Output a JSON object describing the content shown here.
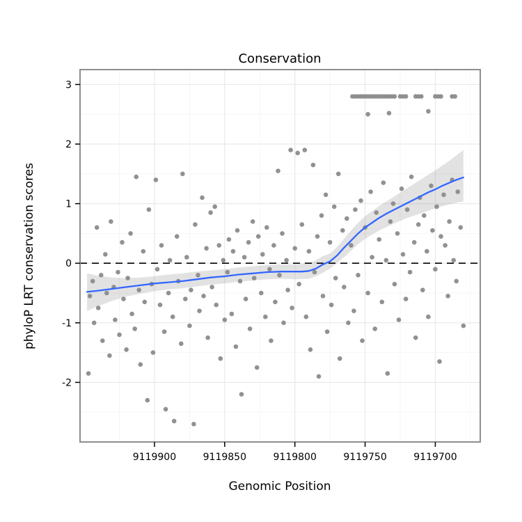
{
  "title": "Conservation",
  "chart_data": {
    "type": "scatter",
    "title": "Conservation",
    "xlabel": "Genomic Position",
    "ylabel": "phyloP LRT conservation scores",
    "x_reversed": true,
    "xlim": [
      9119953,
      9119668
    ],
    "ylim": [
      -3.0,
      3.25
    ],
    "xticks": [
      9119900,
      9119850,
      9119800,
      9119750,
      9119700
    ],
    "yticks": [
      -2,
      -1,
      0,
      1,
      2,
      3
    ],
    "hline": 0,
    "grid": true,
    "legend": "none",
    "colors": {
      "point": "#8b8b8b",
      "smooth": "#3366ff",
      "band": "#a0a0a0",
      "grid_major": "#e9e9e9",
      "grid_minor": "#f4f4f4",
      "panel_border": "#8e8e8e",
      "zero_line": "#000000",
      "text": "#000000"
    },
    "points": [
      [
        9119947,
        -1.85
      ],
      [
        9119946,
        -0.55
      ],
      [
        9119944,
        -0.3
      ],
      [
        9119943,
        -1.0
      ],
      [
        9119941,
        0.6
      ],
      [
        9119940,
        -0.75
      ],
      [
        9119938,
        -0.2
      ],
      [
        9119937,
        -1.3
      ],
      [
        9119935,
        0.15
      ],
      [
        9119934,
        -0.5
      ],
      [
        9119932,
        -1.55
      ],
      [
        9119931,
        0.7
      ],
      [
        9119929,
        -0.4
      ],
      [
        9119928,
        -0.95
      ],
      [
        9119926,
        -0.15
      ],
      [
        9119925,
        -1.2
      ],
      [
        9119923,
        0.35
      ],
      [
        9119922,
        -0.6
      ],
      [
        9119920,
        -1.45
      ],
      [
        9119919,
        -0.25
      ],
      [
        9119917,
        0.5
      ],
      [
        9119916,
        -0.85
      ],
      [
        9119914,
        -1.1
      ],
      [
        9119913,
        1.45
      ],
      [
        9119911,
        -0.45
      ],
      [
        9119910,
        -1.7
      ],
      [
        9119908,
        0.2
      ],
      [
        9119907,
        -0.65
      ],
      [
        9119905,
        -2.3
      ],
      [
        9119904,
        0.9
      ],
      [
        9119902,
        -0.35
      ],
      [
        9119901,
        -1.5
      ],
      [
        9119899,
        1.4
      ],
      [
        9119898,
        -0.1
      ],
      [
        9119896,
        -0.7
      ],
      [
        9119895,
        0.3
      ],
      [
        9119893,
        -1.15
      ],
      [
        9119892,
        -2.45
      ],
      [
        9119890,
        -0.5
      ],
      [
        9119889,
        0.05
      ],
      [
        9119887,
        -0.9
      ],
      [
        9119886,
        -2.65
      ],
      [
        9119884,
        0.45
      ],
      [
        9119883,
        -0.3
      ],
      [
        9119881,
        -1.35
      ],
      [
        9119880,
        1.5
      ],
      [
        9119878,
        -0.6
      ],
      [
        9119877,
        0.1
      ],
      [
        9119875,
        -1.05
      ],
      [
        9119874,
        -0.45
      ],
      [
        9119872,
        -2.7
      ],
      [
        9119871,
        0.65
      ],
      [
        9119869,
        -0.2
      ],
      [
        9119868,
        -0.8
      ],
      [
        9119866,
        1.1
      ],
      [
        9119865,
        -0.55
      ],
      [
        9119863,
        0.25
      ],
      [
        9119862,
        -1.25
      ],
      [
        9119860,
        0.85
      ],
      [
        9119859,
        -0.4
      ],
      [
        9119857,
        0.95
      ],
      [
        9119856,
        -0.7
      ],
      [
        9119854,
        0.3
      ],
      [
        9119853,
        -1.6
      ],
      [
        9119851,
        0.05
      ],
      [
        9119850,
        -0.95
      ],
      [
        9119848,
        -0.15
      ],
      [
        9119847,
        0.4
      ],
      [
        9119845,
        -0.85
      ],
      [
        9119844,
        0.2
      ],
      [
        9119842,
        -1.4
      ],
      [
        9119841,
        0.55
      ],
      [
        9119839,
        -0.3
      ],
      [
        9119838,
        -2.2
      ],
      [
        9119836,
        0.1
      ],
      [
        9119835,
        -0.6
      ],
      [
        9119833,
        0.35
      ],
      [
        9119832,
        -1.1
      ],
      [
        9119830,
        0.7
      ],
      [
        9119829,
        -0.25
      ],
      [
        9119827,
        -1.75
      ],
      [
        9119826,
        0.45
      ],
      [
        9119824,
        -0.5
      ],
      [
        9119823,
        0.15
      ],
      [
        9119821,
        -0.9
      ],
      [
        9119820,
        0.6
      ],
      [
        9119818,
        -0.1
      ],
      [
        9119817,
        -1.3
      ],
      [
        9119815,
        0.3
      ],
      [
        9119814,
        -0.65
      ],
      [
        9119812,
        1.55
      ],
      [
        9119811,
        -0.2
      ],
      [
        9119809,
        0.5
      ],
      [
        9119808,
        -1.0
      ],
      [
        9119806,
        0.05
      ],
      [
        9119805,
        -0.45
      ],
      [
        9119803,
        1.9
      ],
      [
        9119802,
        -0.75
      ],
      [
        9119800,
        0.25
      ],
      [
        9119798,
        1.85
      ],
      [
        9119797,
        -0.35
      ],
      [
        9119795,
        0.65
      ],
      [
        9119793,
        1.9
      ],
      [
        9119792,
        -0.9
      ],
      [
        9119790,
        0.2
      ],
      [
        9119789,
        -1.45
      ],
      [
        9119787,
        1.65
      ],
      [
        9119786,
        -0.15
      ],
      [
        9119784,
        0.45
      ],
      [
        9119783,
        -1.9
      ],
      [
        9119781,
        0.8
      ],
      [
        9119780,
        -0.55
      ],
      [
        9119778,
        1.15
      ],
      [
        9119777,
        -1.15
      ],
      [
        9119775,
        0.35
      ],
      [
        9119774,
        -0.7
      ],
      [
        9119772,
        0.95
      ],
      [
        9119771,
        -0.25
      ],
      [
        9119769,
        1.5
      ],
      [
        9119768,
        -1.6
      ],
      [
        9119766,
        0.55
      ],
      [
        9119765,
        -0.4
      ],
      [
        9119763,
        0.75
      ],
      [
        9119762,
        -1.0
      ],
      [
        9119760,
        0.3
      ],
      [
        9119758,
        -0.8
      ],
      [
        9119757,
        0.9
      ],
      [
        9119755,
        -0.2
      ],
      [
        9119753,
        1.05
      ],
      [
        9119752,
        -1.3
      ],
      [
        9119759,
        2.8
      ],
      [
        9119757,
        2.8
      ],
      [
        9119755,
        2.8
      ],
      [
        9119753,
        2.8
      ],
      [
        9119751,
        2.8
      ],
      [
        9119749,
        2.8
      ],
      [
        9119747,
        2.8
      ],
      [
        9119745,
        2.8
      ],
      [
        9119743,
        2.8
      ],
      [
        9119741,
        2.8
      ],
      [
        9119739,
        2.8
      ],
      [
        9119737,
        2.8
      ],
      [
        9119735,
        2.8
      ],
      [
        9119733,
        2.8
      ],
      [
        9119731,
        2.8
      ],
      [
        9119729,
        2.8
      ],
      [
        9119725,
        2.8
      ],
      [
        9119723,
        2.8
      ],
      [
        9119721,
        2.8
      ],
      [
        9119714,
        2.8
      ],
      [
        9119712,
        2.8
      ],
      [
        9119710,
        2.8
      ],
      [
        9119700,
        2.8
      ],
      [
        9119698,
        2.8
      ],
      [
        9119696,
        2.8
      ],
      [
        9119688,
        2.8
      ],
      [
        9119686,
        2.8
      ],
      [
        9119748,
        2.5
      ],
      [
        9119733,
        2.52
      ],
      [
        9119705,
        2.55
      ],
      [
        9119750,
        0.6
      ],
      [
        9119748,
        -0.5
      ],
      [
        9119746,
        1.2
      ],
      [
        9119745,
        0.1
      ],
      [
        9119743,
        -1.1
      ],
      [
        9119742,
        0.85
      ],
      [
        9119740,
        0.4
      ],
      [
        9119738,
        -0.65
      ],
      [
        9119737,
        1.35
      ],
      [
        9119735,
        0.05
      ],
      [
        9119734,
        -1.85
      ],
      [
        9119732,
        0.7
      ],
      [
        9119730,
        1.0
      ],
      [
        9119729,
        -0.35
      ],
      [
        9119727,
        0.5
      ],
      [
        9119726,
        -0.95
      ],
      [
        9119724,
        1.25
      ],
      [
        9119723,
        0.15
      ],
      [
        9119721,
        -0.6
      ],
      [
        9119720,
        0.9
      ],
      [
        9119718,
        -0.15
      ],
      [
        9119717,
        1.45
      ],
      [
        9119715,
        0.35
      ],
      [
        9119714,
        -1.25
      ],
      [
        9119712,
        0.65
      ],
      [
        9119711,
        1.1
      ],
      [
        9119709,
        -0.45
      ],
      [
        9119708,
        0.8
      ],
      [
        9119706,
        0.2
      ],
      [
        9119705,
        -0.9
      ],
      [
        9119703,
        1.3
      ],
      [
        9119702,
        0.55
      ],
      [
        9119700,
        -0.1
      ],
      [
        9119699,
        0.95
      ],
      [
        9119697,
        -1.65
      ],
      [
        9119696,
        0.45
      ],
      [
        9119694,
        1.15
      ],
      [
        9119693,
        0.3
      ],
      [
        9119691,
        -0.55
      ],
      [
        9119690,
        0.7
      ],
      [
        9119688,
        1.4
      ],
      [
        9119687,
        0.05
      ],
      [
        9119685,
        -0.3
      ],
      [
        9119684,
        1.2
      ],
      [
        9119682,
        0.6
      ],
      [
        9119680,
        -1.05
      ]
    ],
    "smooth": [
      [
        9119948,
        -0.48
      ],
      [
        9119940,
        -0.46
      ],
      [
        9119930,
        -0.43
      ],
      [
        9119920,
        -0.4
      ],
      [
        9119910,
        -0.37
      ],
      [
        9119900,
        -0.34
      ],
      [
        9119890,
        -0.32
      ],
      [
        9119880,
        -0.3
      ],
      [
        9119870,
        -0.27
      ],
      [
        9119860,
        -0.24
      ],
      [
        9119850,
        -0.22
      ],
      [
        9119840,
        -0.19
      ],
      [
        9119830,
        -0.17
      ],
      [
        9119820,
        -0.15
      ],
      [
        9119810,
        -0.14
      ],
      [
        9119800,
        -0.14
      ],
      [
        9119795,
        -0.14
      ],
      [
        9119790,
        -0.13
      ],
      [
        9119785,
        -0.09
      ],
      [
        9119780,
        -0.02
      ],
      [
        9119775,
        0.03
      ],
      [
        9119770,
        0.13
      ],
      [
        9119765,
        0.26
      ],
      [
        9119760,
        0.38
      ],
      [
        9119755,
        0.5
      ],
      [
        9119750,
        0.6
      ],
      [
        9119745,
        0.68
      ],
      [
        9119740,
        0.76
      ],
      [
        9119735,
        0.83
      ],
      [
        9119730,
        0.89
      ],
      [
        9119725,
        0.95
      ],
      [
        9119720,
        1.01
      ],
      [
        9119715,
        1.07
      ],
      [
        9119710,
        1.13
      ],
      [
        9119705,
        1.19
      ],
      [
        9119700,
        1.24
      ],
      [
        9119695,
        1.3
      ],
      [
        9119690,
        1.35
      ],
      [
        9119685,
        1.4
      ],
      [
        9119680,
        1.44
      ]
    ],
    "band": [
      [
        9119948,
        -0.8,
        -0.17
      ],
      [
        9119940,
        -0.72,
        -0.21
      ],
      [
        9119930,
        -0.63,
        -0.24
      ],
      [
        9119920,
        -0.56,
        -0.25
      ],
      [
        9119910,
        -0.51,
        -0.24
      ],
      [
        9119900,
        -0.47,
        -0.22
      ],
      [
        9119890,
        -0.44,
        -0.19
      ],
      [
        9119880,
        -0.42,
        -0.17
      ],
      [
        9119870,
        -0.39,
        -0.14
      ],
      [
        9119860,
        -0.36,
        -0.12
      ],
      [
        9119850,
        -0.34,
        -0.1
      ],
      [
        9119840,
        -0.31,
        -0.07
      ],
      [
        9119830,
        -0.29,
        -0.05
      ],
      [
        9119820,
        -0.27,
        -0.03
      ],
      [
        9119810,
        -0.26,
        -0.02
      ],
      [
        9119800,
        -0.27,
        -0.02
      ],
      [
        9119790,
        -0.26,
        0.0
      ],
      [
        9119785,
        -0.22,
        0.05
      ],
      [
        9119780,
        -0.16,
        0.12
      ],
      [
        9119775,
        -0.09,
        0.16
      ],
      [
        9119770,
        0.0,
        0.27
      ],
      [
        9119765,
        0.1,
        0.41
      ],
      [
        9119760,
        0.21,
        0.55
      ],
      [
        9119755,
        0.32,
        0.68
      ],
      [
        9119750,
        0.41,
        0.79
      ],
      [
        9119740,
        0.55,
        0.96
      ],
      [
        9119730,
        0.66,
        1.11
      ],
      [
        9119720,
        0.76,
        1.26
      ],
      [
        9119710,
        0.84,
        1.41
      ],
      [
        9119700,
        0.92,
        1.56
      ],
      [
        9119690,
        0.99,
        1.72
      ],
      [
        9119680,
        1.04,
        1.9
      ]
    ]
  }
}
